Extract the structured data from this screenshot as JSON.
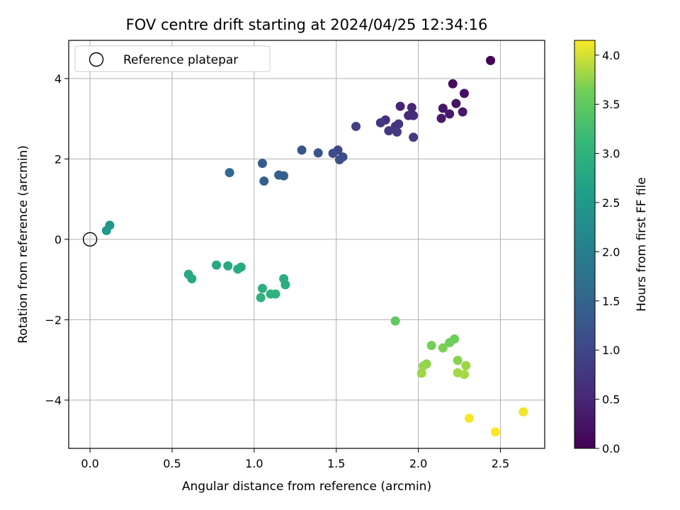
{
  "chart_data": {
    "type": "scatter",
    "title": "FOV centre drift starting at 2024/04/25 12:34:16",
    "xlabel": "Angular distance from reference (arcmin)",
    "ylabel": "Rotation from reference (arcmin)",
    "xlim": [
      -0.13,
      2.77
    ],
    "ylim": [
      -5.2,
      4.95
    ],
    "x_ticks": [
      0.0,
      0.5,
      1.0,
      1.5,
      2.0,
      2.5
    ],
    "x_tick_labels": [
      "0.0",
      "0.5",
      "1.0",
      "1.5",
      "2.0",
      "2.5"
    ],
    "y_ticks": [
      -4,
      -2,
      0,
      2,
      4
    ],
    "y_tick_labels": [
      "−4",
      "−2",
      "0",
      "2",
      "4"
    ],
    "grid": true,
    "legend": {
      "position": "top-left",
      "entries": [
        "Reference platepar"
      ]
    },
    "reference": {
      "label": "Reference platepar",
      "x": 0.0,
      "y": 0.0
    },
    "colorbar": {
      "label": "Hours from first FF file",
      "colormap": "viridis",
      "range": [
        0.0,
        4.15
      ],
      "ticks": [
        0.0,
        0.5,
        1.0,
        1.5,
        2.0,
        2.5,
        3.0,
        3.5,
        4.0
      ],
      "tick_labels": [
        "0.0",
        "0.5",
        "1.0",
        "1.5",
        "2.0",
        "2.5",
        "3.0",
        "3.5",
        "4.0"
      ]
    },
    "points": [
      {
        "x": 2.44,
        "y": 4.45,
        "hours": 0.0
      },
      {
        "x": 2.21,
        "y": 3.87,
        "hours": 0.15
      },
      {
        "x": 2.28,
        "y": 3.63,
        "hours": 0.2
      },
      {
        "x": 2.23,
        "y": 3.38,
        "hours": 0.25
      },
      {
        "x": 2.15,
        "y": 3.26,
        "hours": 0.28
      },
      {
        "x": 2.27,
        "y": 3.17,
        "hours": 0.3
      },
      {
        "x": 2.19,
        "y": 3.12,
        "hours": 0.33
      },
      {
        "x": 2.14,
        "y": 3.01,
        "hours": 0.35
      },
      {
        "x": 1.89,
        "y": 3.31,
        "hours": 0.45
      },
      {
        "x": 1.96,
        "y": 3.28,
        "hours": 0.5
      },
      {
        "x": 1.94,
        "y": 3.08,
        "hours": 0.55
      },
      {
        "x": 1.97,
        "y": 3.08,
        "hours": 0.6
      },
      {
        "x": 1.8,
        "y": 2.97,
        "hours": 0.65
      },
      {
        "x": 1.77,
        "y": 2.9,
        "hours": 0.7
      },
      {
        "x": 1.88,
        "y": 2.87,
        "hours": 0.72
      },
      {
        "x": 1.86,
        "y": 2.81,
        "hours": 0.75
      },
      {
        "x": 1.82,
        "y": 2.7,
        "hours": 0.78
      },
      {
        "x": 1.87,
        "y": 2.67,
        "hours": 0.8
      },
      {
        "x": 1.97,
        "y": 2.54,
        "hours": 0.85
      },
      {
        "x": 1.62,
        "y": 2.81,
        "hours": 0.9
      },
      {
        "x": 1.51,
        "y": 2.22,
        "hours": 1.0
      },
      {
        "x": 1.48,
        "y": 2.14,
        "hours": 1.05
      },
      {
        "x": 1.54,
        "y": 2.05,
        "hours": 1.1
      },
      {
        "x": 1.52,
        "y": 1.98,
        "hours": 1.15
      },
      {
        "x": 1.39,
        "y": 2.15,
        "hours": 1.2
      },
      {
        "x": 1.29,
        "y": 2.22,
        "hours": 1.25
      },
      {
        "x": 1.05,
        "y": 1.89,
        "hours": 1.35
      },
      {
        "x": 1.15,
        "y": 1.6,
        "hours": 1.4
      },
      {
        "x": 1.18,
        "y": 1.58,
        "hours": 1.42
      },
      {
        "x": 1.06,
        "y": 1.45,
        "hours": 1.45
      },
      {
        "x": 0.85,
        "y": 1.66,
        "hours": 1.55
      },
      {
        "x": 0.12,
        "y": 0.35,
        "hours": 2.45
      },
      {
        "x": 0.1,
        "y": 0.22,
        "hours": 2.5
      },
      {
        "x": 0.77,
        "y": -0.64,
        "hours": 2.8
      },
      {
        "x": 0.84,
        "y": -0.66,
        "hours": 2.82
      },
      {
        "x": 0.92,
        "y": -0.69,
        "hours": 2.85
      },
      {
        "x": 0.9,
        "y": -0.74,
        "hours": 2.85
      },
      {
        "x": 0.6,
        "y": -0.87,
        "hours": 2.8
      },
      {
        "x": 0.62,
        "y": -0.98,
        "hours": 2.82
      },
      {
        "x": 1.18,
        "y": -0.98,
        "hours": 2.9
      },
      {
        "x": 1.19,
        "y": -1.13,
        "hours": 2.92
      },
      {
        "x": 1.05,
        "y": -1.22,
        "hours": 2.95
      },
      {
        "x": 1.1,
        "y": -1.36,
        "hours": 2.97
      },
      {
        "x": 1.13,
        "y": -1.36,
        "hours": 2.98
      },
      {
        "x": 1.04,
        "y": -1.45,
        "hours": 3.0
      },
      {
        "x": 1.86,
        "y": -2.03,
        "hours": 3.5
      },
      {
        "x": 2.22,
        "y": -2.48,
        "hours": 3.6
      },
      {
        "x": 2.19,
        "y": -2.57,
        "hours": 3.62
      },
      {
        "x": 2.08,
        "y": -2.64,
        "hours": 3.65
      },
      {
        "x": 2.15,
        "y": -2.7,
        "hours": 3.67
      },
      {
        "x": 2.24,
        "y": -3.01,
        "hours": 3.72
      },
      {
        "x": 2.05,
        "y": -3.1,
        "hours": 3.75
      },
      {
        "x": 2.03,
        "y": -3.15,
        "hours": 3.77
      },
      {
        "x": 2.29,
        "y": -3.14,
        "hours": 3.8
      },
      {
        "x": 2.24,
        "y": -3.32,
        "hours": 3.82
      },
      {
        "x": 2.28,
        "y": -3.36,
        "hours": 3.83
      },
      {
        "x": 2.02,
        "y": -3.33,
        "hours": 3.8
      },
      {
        "x": 2.64,
        "y": -4.29,
        "hours": 4.1
      },
      {
        "x": 2.31,
        "y": -4.45,
        "hours": 4.12
      },
      {
        "x": 2.47,
        "y": -4.79,
        "hours": 4.15
      }
    ]
  }
}
